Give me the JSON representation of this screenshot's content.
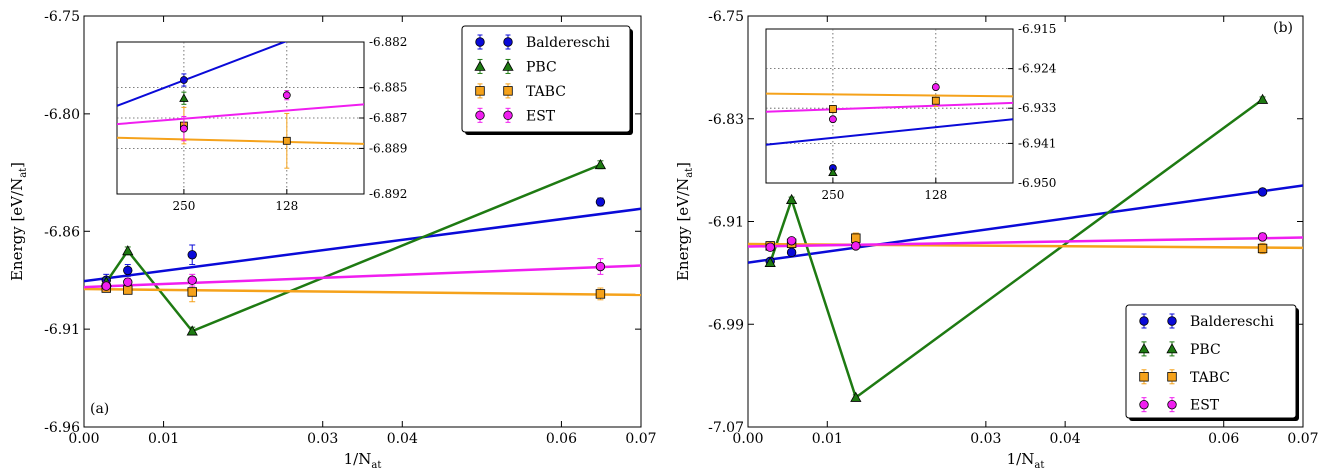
{
  "colors": {
    "Baldereschi": "#0a0ad8",
    "PBC": "#1e7a12",
    "TABC": "#f5a21b",
    "EST": "#f01ef0"
  },
  "chart_data": [
    {
      "type": "line",
      "panel_label": "(a)",
      "xlabel_main": "1/N",
      "xlabel_sub": "at",
      "ylabel_main": "Energy [eV/N",
      "ylabel_sub": "at",
      "ylabel_end": "]",
      "xlim": [
        0,
        0.07
      ],
      "ylim": [
        -6.96,
        -6.75
      ],
      "xticks": [
        0,
        0.01,
        0.03,
        0.04,
        0.06,
        0.07
      ],
      "xtick_labels": [
        "0.00",
        "0.01",
        "0.03",
        "0.04",
        "0.06",
        "0.07"
      ],
      "yticks": [
        -6.96,
        -6.91,
        -6.86,
        -6.8,
        -6.75
      ],
      "ytick_labels": [
        "-6.96",
        "-6.91",
        "-6.86",
        "-6.80",
        "-6.75"
      ],
      "legend": "top-right",
      "series": [
        {
          "name": "Baldereschi",
          "marker": "circle",
          "x": [
            0.0028,
            0.0055,
            0.0136,
            0.0649
          ],
          "y": [
            -6.885,
            -6.88,
            -6.872,
            -6.845
          ],
          "err": [
            0.003,
            0.003,
            0.005,
            0.002
          ],
          "fit": [
            -6.8855,
            -6.8485
          ]
        },
        {
          "name": "PBC",
          "marker": "triangle",
          "connect": true,
          "x": [
            0.0028,
            0.0055,
            0.0136,
            0.0649
          ],
          "y": [
            -6.886,
            -6.87,
            -6.911,
            -6.826
          ],
          "err": [
            0.002,
            0.002,
            0.002,
            0.002
          ]
        },
        {
          "name": "TABC",
          "marker": "square",
          "x": [
            0.0028,
            0.0055,
            0.0136,
            0.0649
          ],
          "y": [
            -6.889,
            -6.89,
            -6.891,
            -6.892
          ],
          "err": [
            0.002,
            0.002,
            0.005,
            0.003
          ],
          "fit": [
            -6.8895,
            -6.8925
          ]
        },
        {
          "name": "EST",
          "marker": "circle",
          "x": [
            0.0028,
            0.0055,
            0.0136,
            0.0649
          ],
          "y": [
            -6.888,
            -6.886,
            -6.885,
            -6.878
          ],
          "err": [
            0.002,
            0.002,
            0.003,
            0.004
          ],
          "fit": [
            -6.8885,
            -6.8775
          ]
        }
      ],
      "inset": {
        "x_positions": [
          1,
          2
        ],
        "xlim": [
          0.35,
          2.75
        ],
        "xtick_labels": [
          "250",
          "128"
        ],
        "ylim": [
          -6.892,
          -6.882
        ],
        "yticks": [
          -6.892,
          -6.889,
          -6.887,
          -6.885,
          -6.882
        ],
        "ytick_labels": [
          "-6.892",
          "-6.889",
          "-6.887",
          "-6.885",
          "-6.882"
        ],
        "series": [
          {
            "name": "Baldereschi",
            "marker": "circle",
            "y": [
              -6.8845,
              null
            ],
            "err": [
              0.0004,
              null
            ],
            "fit": [
              -6.8862,
              -6.88
            ]
          },
          {
            "name": "PBC",
            "marker": "triangle",
            "y": [
              -6.8857,
              null
            ],
            "err": [
              0.0004,
              null
            ]
          },
          {
            "name": "TABC",
            "marker": "square",
            "y": [
              -6.8875,
              -6.8885
            ],
            "err": [
              0.0012,
              0.0018
            ],
            "fit": [
              -6.8883,
              -6.8887
            ]
          },
          {
            "name": "EST",
            "marker": "circle",
            "y": [
              -6.8877,
              -6.8855
            ],
            "err": [
              0.0008,
              0.0003
            ],
            "fit": [
              -6.8874,
              -6.8861
            ]
          }
        ]
      }
    },
    {
      "type": "line",
      "panel_label": "(b)",
      "xlabel_main": "1/N",
      "xlabel_sub": "at",
      "ylabel_main": "Energy [eV/N",
      "ylabel_sub": "at",
      "ylabel_end": "]",
      "xlim": [
        0,
        0.07
      ],
      "ylim": [
        -7.07,
        -6.75
      ],
      "xticks": [
        0,
        0.01,
        0.03,
        0.04,
        0.06,
        0.07
      ],
      "xtick_labels": [
        "0.00",
        "0.01",
        "0.03",
        "0.04",
        "0.06",
        "0.07"
      ],
      "yticks": [
        -7.07,
        -6.99,
        -6.91,
        -6.83,
        -6.75
      ],
      "ytick_labels": [
        "-7.07",
        "-6.99",
        "-6.91",
        "-6.83",
        "-6.75"
      ],
      "legend": "bottom-right",
      "series": [
        {
          "name": "Baldereschi",
          "marker": "circle",
          "x": [
            0.0028,
            0.0055,
            0.0136,
            0.0649
          ],
          "y": [
            -6.941,
            -6.934,
            -6.923,
            -6.887
          ],
          "err": [
            0.002,
            0.002,
            0.003,
            0.002
          ],
          "fit": [
            -6.942,
            -6.882
          ]
        },
        {
          "name": "PBC",
          "marker": "triangle",
          "connect": true,
          "x": [
            0.0028,
            0.0055,
            0.0136,
            0.0649
          ],
          "y": [
            -6.942,
            -6.893,
            -7.047,
            -6.815
          ],
          "err": [
            0.002,
            0.002,
            0.002,
            0.002
          ]
        },
        {
          "name": "TABC",
          "marker": "square",
          "x": [
            0.0028,
            0.0055,
            0.0136,
            0.0649
          ],
          "y": [
            -6.929,
            -6.927,
            -6.923,
            -6.931
          ],
          "err": [
            0.002,
            0.002,
            0.004,
            0.004
          ],
          "fit": [
            -6.9275,
            -6.9305
          ]
        },
        {
          "name": "EST",
          "marker": "circle",
          "x": [
            0.0028,
            0.0055,
            0.0136,
            0.0649
          ],
          "y": [
            -6.93,
            -6.925,
            -6.929,
            -6.922
          ],
          "err": [
            0.002,
            0.002,
            0.002,
            0.003
          ],
          "fit": [
            -6.9295,
            -6.9225
          ]
        }
      ],
      "inset": {
        "x_positions": [
          1,
          2
        ],
        "xlim": [
          0.35,
          2.75
        ],
        "xtick_labels": [
          "250",
          "128"
        ],
        "ylim": [
          -6.95,
          -6.915
        ],
        "yticks": [
          -6.95,
          -6.941,
          -6.933,
          -6.924,
          -6.915
        ],
        "ytick_labels": [
          "-6.950",
          "-6.941",
          "-6.933",
          "-6.924",
          "-6.915"
        ],
        "series": [
          {
            "name": "Baldereschi",
            "marker": "circle",
            "y": [
              -6.9466,
              null
            ],
            "err": [
              0.0005,
              null
            ],
            "fit": [
              -6.9413,
              -6.9355
            ]
          },
          {
            "name": "PBC",
            "marker": "triangle",
            "y": [
              -6.9476,
              null
            ],
            "err": [
              0.0004,
              null
            ]
          },
          {
            "name": "TABC",
            "marker": "square",
            "y": [
              -6.9332,
              -6.9313
            ],
            "err": [
              0.0008,
              0.0013
            ],
            "fit": [
              -6.9297,
              -6.9303
            ]
          },
          {
            "name": "EST",
            "marker": "circle",
            "y": [
              -6.9355,
              -6.9282
            ],
            "err": [
              0.0006,
              0.0006
            ],
            "fit": [
              -6.9338,
              -6.9318
            ]
          }
        ]
      }
    }
  ]
}
